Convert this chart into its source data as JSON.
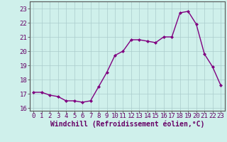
{
  "x": [
    0,
    1,
    2,
    3,
    4,
    5,
    6,
    7,
    8,
    9,
    10,
    11,
    12,
    13,
    14,
    15,
    16,
    17,
    18,
    19,
    20,
    21,
    22,
    23
  ],
  "y": [
    17.1,
    17.1,
    16.9,
    16.8,
    16.5,
    16.5,
    16.4,
    16.5,
    17.5,
    18.5,
    19.7,
    20.0,
    20.8,
    20.8,
    20.7,
    20.6,
    21.0,
    21.0,
    22.7,
    22.8,
    21.9,
    19.8,
    18.9,
    17.6
  ],
  "line_color": "#800080",
  "marker": "D",
  "marker_size": 2.0,
  "bg_color": "#cff0eb",
  "grid_color": "#aacccc",
  "xlabel": "Windchill (Refroidissement éolien,°C)",
  "xlabel_fontsize": 7,
  "ylabel_ticks": [
    16,
    17,
    18,
    19,
    20,
    21,
    22,
    23
  ],
  "xlim": [
    -0.5,
    23.5
  ],
  "ylim": [
    15.8,
    23.5
  ],
  "tick_fontsize": 6.5,
  "line_width": 1.0,
  "text_color": "#660066"
}
